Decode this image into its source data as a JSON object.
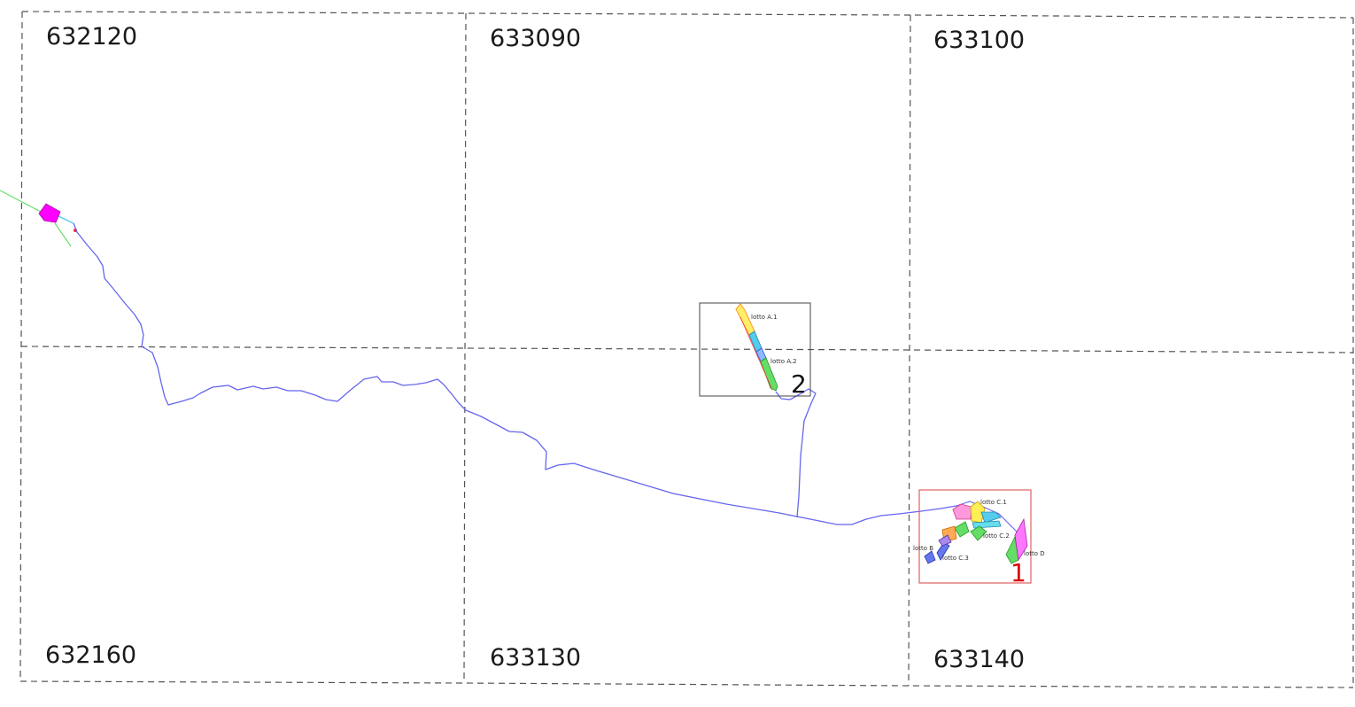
{
  "sheets": [
    {
      "id": "632120",
      "label": "632120"
    },
    {
      "id": "633090",
      "label": "633090"
    },
    {
      "id": "633100",
      "label": "633100"
    },
    {
      "id": "632160",
      "label": "632160"
    },
    {
      "id": "633130",
      "label": "633130"
    },
    {
      "id": "633140",
      "label": "633140"
    }
  ],
  "areas": [
    {
      "number": "2",
      "frame_color": "#444444",
      "number_color": "#111111"
    },
    {
      "number": "1",
      "frame_color": "#e06060",
      "number_color": "#e00000"
    }
  ],
  "lots": [
    {
      "label": "lotto A.1"
    },
    {
      "label": "lotto A.2"
    },
    {
      "label": "lotto C.1"
    },
    {
      "label": "lotto C.2"
    },
    {
      "label": "lotto B"
    },
    {
      "label": "lotto C.3"
    },
    {
      "label": "lotto D"
    }
  ],
  "colors": {
    "grid_line": "#555555",
    "route": "#6666ee",
    "feature_magenta": "#ff00ff",
    "feature_green": "#66dd66",
    "feature_cyan": "#55ccee"
  }
}
